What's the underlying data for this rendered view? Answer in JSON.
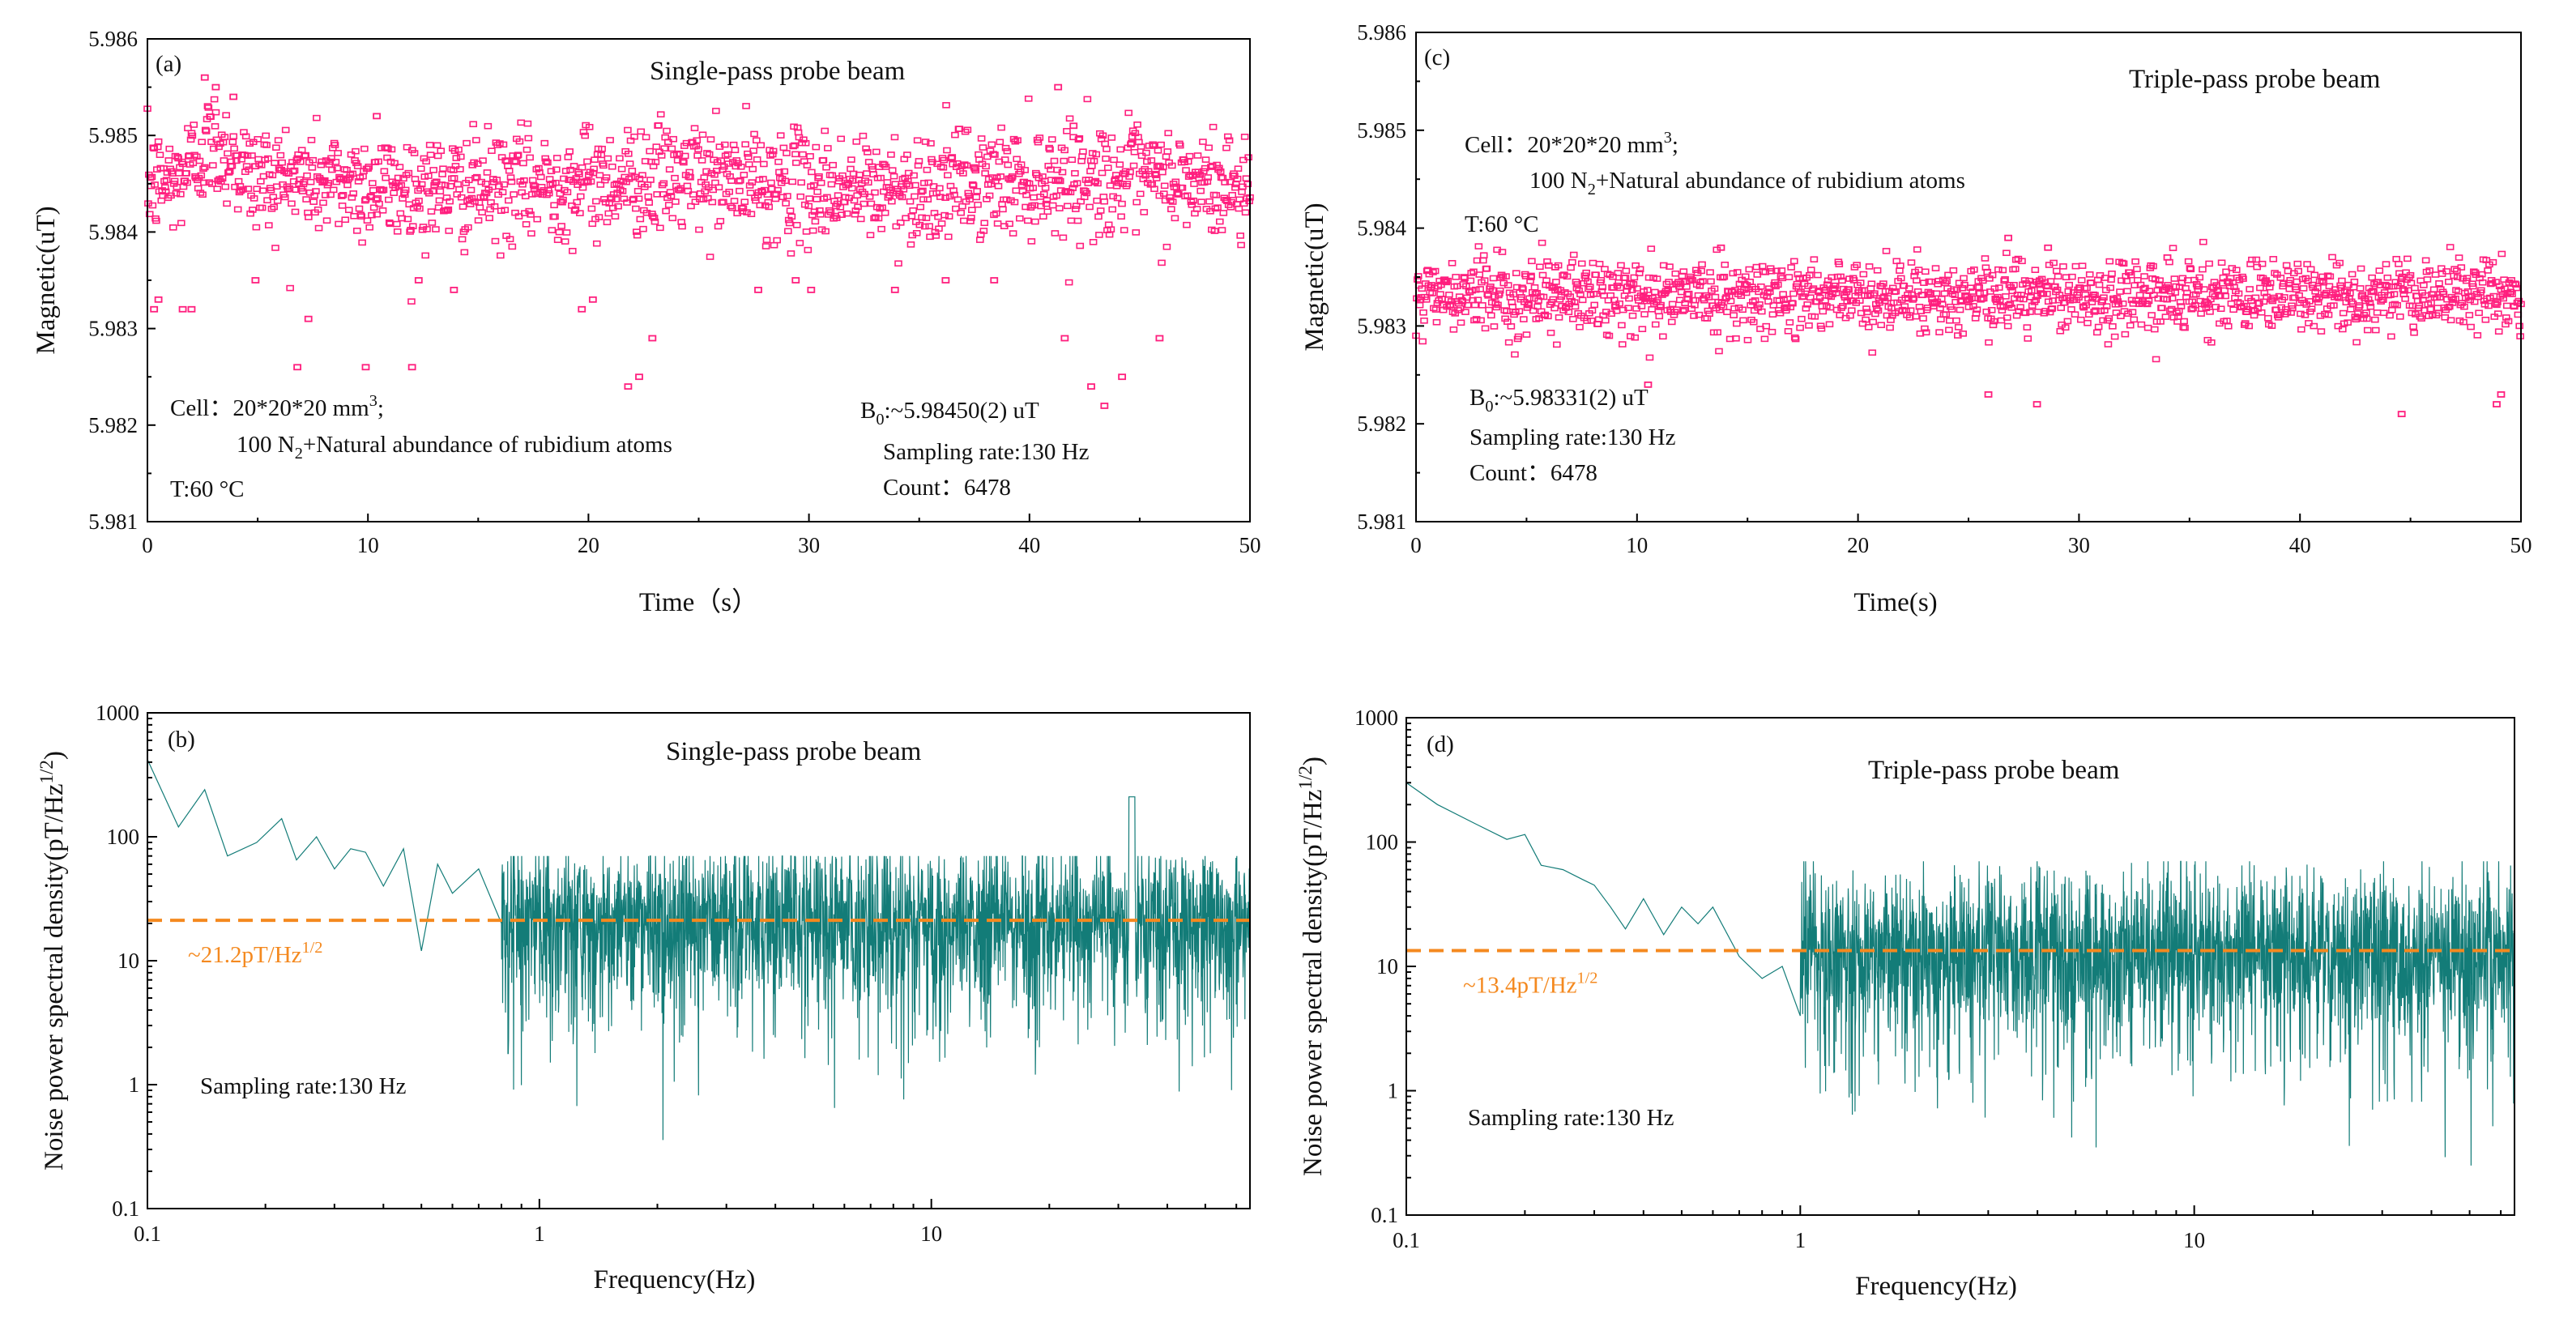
{
  "colors": {
    "magenta": "#ff1f7e",
    "teal": "#137c78",
    "orange": "#f4891f",
    "axis": "#000000"
  },
  "chart_data": [
    {
      "id": "a",
      "type": "scatter",
      "panel_label": "(a)",
      "title": "Single-pass probe beam",
      "xlabel": "Time（s）",
      "ylabel": "Magnetic(uT)",
      "xlim": [
        0,
        50
      ],
      "ylim": [
        5.981,
        5.986
      ],
      "xticks": [
        "0",
        "10",
        "20",
        "30",
        "40",
        "50"
      ],
      "yticks": [
        "5.981",
        "5.982",
        "5.983",
        "5.984",
        "5.985",
        "5.986"
      ],
      "series": [
        {
          "mean": 5.9845,
          "spread": 0.00028,
          "count": 6478,
          "sampling_rate_hz": 130
        }
      ],
      "outliers": [
        [
          0.3,
          5.9832
        ],
        [
          0.5,
          5.9833
        ],
        [
          1.6,
          5.9832
        ],
        [
          2.0,
          5.9832
        ],
        [
          2.6,
          5.9856
        ],
        [
          3.1,
          5.9855
        ],
        [
          3.9,
          5.9854
        ],
        [
          4.9,
          5.9835
        ],
        [
          7.3,
          5.9831
        ],
        [
          6.8,
          5.9826
        ],
        [
          9.9,
          5.9826
        ],
        [
          10.4,
          5.9852
        ],
        [
          12.3,
          5.9835
        ],
        [
          12.0,
          5.9826
        ],
        [
          13.9,
          5.9834
        ],
        [
          19.7,
          5.9832
        ],
        [
          20.2,
          5.9833
        ],
        [
          21.8,
          5.9824
        ],
        [
          22.3,
          5.9825
        ],
        [
          22.9,
          5.9829
        ],
        [
          27.7,
          5.9834
        ],
        [
          29.4,
          5.9835
        ],
        [
          30.1,
          5.9834
        ],
        [
          33.9,
          5.9834
        ],
        [
          36.2,
          5.9835
        ],
        [
          38.4,
          5.9835
        ],
        [
          41.3,
          5.9855
        ],
        [
          41.6,
          5.9829
        ],
        [
          42.8,
          5.9824
        ],
        [
          43.4,
          5.9822
        ],
        [
          44.2,
          5.9825
        ],
        [
          45.9,
          5.9829
        ],
        [
          42.0,
          5.9851
        ]
      ],
      "annotations": {
        "cell_line1": "Cell：20*20*20 mm",
        "cell_line1_sup": "3",
        "cell_line1_end": ";",
        "cell_line2_pre": "100 N",
        "cell_line2_sub": "2",
        "cell_line2_post": "+Natural abundance of rubidium atoms",
        "temp": "T:60 °C",
        "b0_pre": "B",
        "b0_sub": "0",
        "b0_post": ":~5.98450(2) uT",
        "rate": "Sampling rate:130 Hz",
        "count": "Count：6478"
      }
    },
    {
      "id": "b",
      "type": "line",
      "panel_label": "(b)",
      "title": "Single-pass probe beam",
      "xlabel": "Frequency(Hz)",
      "ylabel": "Noise power spectral density(pT/Hz",
      "ylabel_sup": "1/2",
      "ylabel_end": ")",
      "xscale": "log",
      "yscale": "log",
      "xlim": [
        0.1,
        65
      ],
      "ylim": [
        0.1,
        1000
      ],
      "xticks": [
        "0.1",
        "1",
        "10"
      ],
      "yticks": [
        "0.1",
        "1",
        "10",
        "100",
        "1000"
      ],
      "series": [
        {
          "level": 21.2,
          "peak_at": 32.5,
          "peak_value": 210
        }
      ],
      "start_values": [
        [
          0.1,
          420
        ],
        [
          0.12,
          120
        ],
        [
          0.14,
          240
        ],
        [
          0.16,
          70
        ],
        [
          0.19,
          90
        ],
        [
          0.22,
          140
        ],
        [
          0.24,
          65
        ],
        [
          0.27,
          100
        ],
        [
          0.3,
          55
        ],
        [
          0.33,
          80
        ],
        [
          0.36,
          75
        ],
        [
          0.4,
          40
        ],
        [
          0.45,
          80
        ],
        [
          0.5,
          12
        ],
        [
          0.55,
          60
        ],
        [
          0.6,
          35
        ],
        [
          0.7,
          55
        ],
        [
          0.8,
          20
        ]
      ],
      "reference_line": {
        "value": 21.2,
        "label_pre": "~21.2pT/Hz",
        "label_sup": "1/2"
      },
      "annotations": {
        "rate": "Sampling rate:130 Hz"
      }
    },
    {
      "id": "c",
      "type": "scatter",
      "panel_label": "(c)",
      "title": "Triple-pass probe beam",
      "xlabel": "Time(s)",
      "ylabel": "Magnetic(uT)",
      "xlim": [
        0,
        50
      ],
      "ylim": [
        5.981,
        5.986
      ],
      "xticks": [
        "0",
        "10",
        "20",
        "30",
        "40",
        "50"
      ],
      "yticks": [
        "5.981",
        "5.982",
        "5.983",
        "5.984",
        "5.985",
        "5.986"
      ],
      "series": [
        {
          "mean": 5.98331,
          "spread": 0.00018,
          "count": 6478,
          "sampling_rate_hz": 130
        }
      ],
      "outliers": [
        [
          10.5,
          5.9824
        ],
        [
          25.9,
          5.9823
        ],
        [
          28.1,
          5.9822
        ],
        [
          44.6,
          5.9821
        ],
        [
          48.9,
          5.9822
        ],
        [
          49.1,
          5.9823
        ],
        [
          13.8,
          5.9838
        ],
        [
          26.8,
          5.9839
        ],
        [
          28.6,
          5.9838
        ],
        [
          34.0,
          5.9837
        ],
        [
          5.2,
          5.9835
        ],
        [
          6.3,
          5.9836
        ]
      ],
      "annotations": {
        "cell_line1": "Cell：20*20*20 mm",
        "cell_line1_sup": "3",
        "cell_line1_end": ";",
        "cell_line2_pre": "100 N",
        "cell_line2_sub": "2",
        "cell_line2_post": "+Natural abundance of rubidium atoms",
        "temp": "T:60 °C",
        "b0_pre": "B",
        "b0_sub": "0",
        "b0_post": ":~5.98331(2) uT",
        "rate": "Sampling rate:130 Hz",
        "count": "Count：6478"
      }
    },
    {
      "id": "d",
      "type": "line",
      "panel_label": "(d)",
      "title": "Triple-pass probe beam",
      "xlabel": "Frequency(Hz)",
      "ylabel": "Noise power spectral density(pT/Hz",
      "ylabel_sup": "1/2",
      "ylabel_end": ")",
      "xscale": "log",
      "yscale": "log",
      "xlim": [
        0.1,
        65
      ],
      "ylim": [
        0.1,
        1000
      ],
      "xticks": [
        "0.1",
        "1",
        "10"
      ],
      "yticks": [
        "0.1",
        "1",
        "10",
        "100",
        "1000"
      ],
      "series": [
        {
          "level": 13.4
        }
      ],
      "start_values": [
        [
          0.1,
          300
        ],
        [
          0.12,
          200
        ],
        [
          0.15,
          140
        ],
        [
          0.18,
          105
        ],
        [
          0.2,
          115
        ],
        [
          0.22,
          65
        ],
        [
          0.25,
          60
        ],
        [
          0.28,
          50
        ],
        [
          0.3,
          45
        ],
        [
          0.33,
          30
        ],
        [
          0.36,
          20
        ],
        [
          0.4,
          35
        ],
        [
          0.45,
          18
        ],
        [
          0.5,
          30
        ],
        [
          0.55,
          22
        ],
        [
          0.6,
          30
        ],
        [
          0.7,
          12
        ],
        [
          0.8,
          8
        ],
        [
          0.9,
          10
        ],
        [
          1.0,
          4
        ]
      ],
      "reference_line": {
        "value": 13.4,
        "label_pre": "~13.4pT/Hz",
        "label_sup": "1/2"
      },
      "annotations": {
        "rate": "Sampling rate:130 Hz"
      }
    }
  ]
}
